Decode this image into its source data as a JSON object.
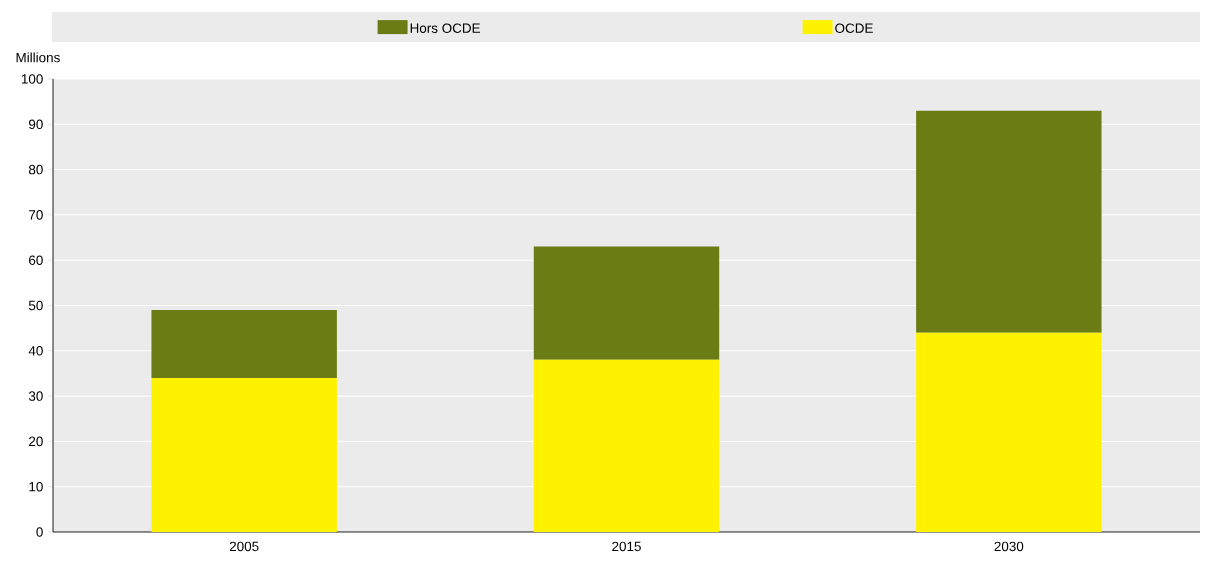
{
  "chart_data": {
    "type": "bar",
    "stacked": true,
    "ylabel": "Millions",
    "categories": [
      "2005",
      "2015",
      "2030"
    ],
    "series": [
      {
        "name": "OCDE",
        "color": "#fff200",
        "values": [
          34,
          38,
          44
        ]
      },
      {
        "name": "Hors OCDE",
        "color": "#6b7c15",
        "values": [
          15,
          25,
          49
        ]
      }
    ],
    "ylim": [
      0,
      100
    ],
    "yticks": [
      0,
      10,
      20,
      30,
      40,
      50,
      60,
      70,
      80,
      90,
      100
    ],
    "grid": "y",
    "legend": "top"
  }
}
